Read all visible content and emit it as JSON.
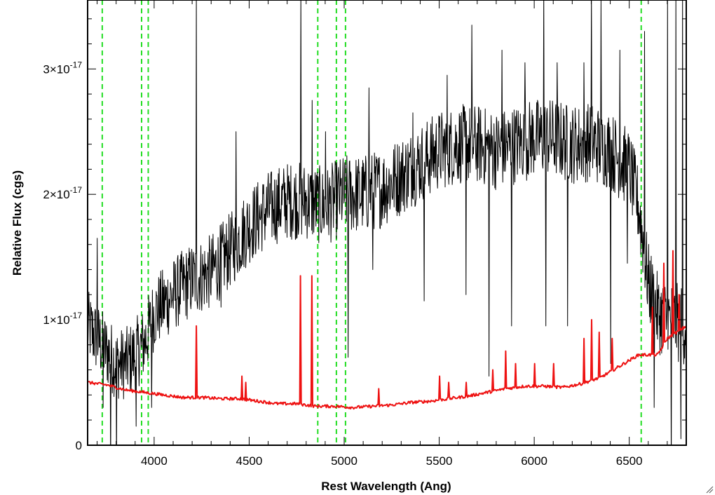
{
  "chart_data": {
    "type": "line",
    "title": "",
    "xlabel": "Rest Wavelength (Ang)",
    "ylabel": "Relative Flux (cgs)",
    "xlim": [
      3650,
      6800
    ],
    "ylim": [
      -1e-20,
      3.55e-17
    ],
    "grid": false,
    "xticks": [
      {
        "value": 4000,
        "label": "4000"
      },
      {
        "value": 4500,
        "label": "4500"
      },
      {
        "value": 5000,
        "label": "5000"
      },
      {
        "value": 5500,
        "label": "5500"
      },
      {
        "value": 6000,
        "label": "6000"
      },
      {
        "value": 6500,
        "label": "6500"
      }
    ],
    "yticks": [
      {
        "value": 0,
        "base": "0",
        "exp": ""
      },
      {
        "value": 1e-17,
        "base": "1×10",
        "exp": "-17"
      },
      {
        "value": 2e-17,
        "base": "2×10",
        "exp": "-17"
      },
      {
        "value": 3e-17,
        "base": "3×10",
        "exp": "-17"
      }
    ],
    "vlines": {
      "color": "#22dd22",
      "style": "dashed",
      "x": [
        3727,
        3934,
        3969,
        4861,
        4959,
        5007,
        6563
      ]
    },
    "series": [
      {
        "color": "#000000",
        "width": 1,
        "smooth_points": [
          [
            3650,
            9.5e-18
          ],
          [
            3700,
            8.5e-18
          ],
          [
            3750,
            7.5e-18
          ],
          [
            3800,
            6.5e-18
          ],
          [
            3850,
            6.5e-18
          ],
          [
            3900,
            7.2e-18
          ],
          [
            3950,
            8.2e-18
          ],
          [
            4000,
            1.05e-17
          ],
          [
            4100,
            1.2e-17
          ],
          [
            4200,
            1.32e-17
          ],
          [
            4300,
            1.38e-17
          ],
          [
            4400,
            1.55e-17
          ],
          [
            4500,
            1.75e-17
          ],
          [
            4600,
            1.88e-17
          ],
          [
            4700,
            1.95e-17
          ],
          [
            4800,
            1.95e-17
          ],
          [
            4900,
            1.9e-17
          ],
          [
            5000,
            2e-17
          ],
          [
            5100,
            2e-17
          ],
          [
            5200,
            2.05e-17
          ],
          [
            5300,
            2.15e-17
          ],
          [
            5400,
            2.25e-17
          ],
          [
            5500,
            2.35e-17
          ],
          [
            5600,
            2.4e-17
          ],
          [
            5700,
            2.4e-17
          ],
          [
            5800,
            2.35e-17
          ],
          [
            5900,
            2.4e-17
          ],
          [
            6000,
            2.45e-17
          ],
          [
            6100,
            2.45e-17
          ],
          [
            6200,
            2.4e-17
          ],
          [
            6300,
            2.42e-17
          ],
          [
            6400,
            2.35e-17
          ],
          [
            6500,
            2.2e-17
          ],
          [
            6550,
            1.9e-17
          ],
          [
            6600,
            1.3e-17
          ],
          [
            6650,
            1.05e-17
          ],
          [
            6700,
            1e-17
          ],
          [
            6800,
            9.5e-18
          ]
        ],
        "spikes": [
          [
            3700,
            1.65e-17
          ],
          [
            3730,
            3e-18
          ],
          [
            3770,
            -2e-18
          ],
          [
            3800,
            -2e-18
          ],
          [
            3905,
            1.5e-18
          ],
          [
            3985,
            3e-18
          ],
          [
            4220,
            2.5e-18
          ],
          [
            4220,
            3.65e-17
          ],
          [
            4350,
            1.1e-17
          ],
          [
            4430,
            2.5e-17
          ],
          [
            4770,
            -2e-18
          ],
          [
            4770,
            3.65e-17
          ],
          [
            4830,
            2.75e-17
          ],
          [
            4900,
            2.5e-17
          ],
          [
            5020,
            7e-18
          ],
          [
            5130,
            2.85e-17
          ],
          [
            5150,
            1.4e-17
          ],
          [
            5360,
            2.65e-17
          ],
          [
            5420,
            1.15e-17
          ],
          [
            5540,
            2.95e-17
          ],
          [
            5640,
            1.2e-17
          ],
          [
            5670,
            3.35e-17
          ],
          [
            5760,
            5.5e-18
          ],
          [
            5830,
            3.15e-17
          ],
          [
            5880,
            9.5e-18
          ],
          [
            5950,
            3.05e-17
          ],
          [
            6050,
            3.65e-17
          ],
          [
            6060,
            9.5e-18
          ],
          [
            6120,
            3.05e-17
          ],
          [
            6175,
            9.5e-18
          ],
          [
            6260,
            3.05e-17
          ],
          [
            6300,
            3.65e-17
          ],
          [
            6350,
            3.55e-17
          ],
          [
            6400,
            6.5e-18
          ],
          [
            6450,
            3.15e-17
          ],
          [
            6490,
            1.45e-17
          ],
          [
            6580,
            3.3e-17
          ],
          [
            6630,
            3e-18
          ],
          [
            6700,
            3.65e-17
          ],
          [
            6720,
            -2e-18
          ],
          [
            6745,
            3.65e-17
          ],
          [
            6770,
            5e-19
          ],
          [
            6780,
            3.65e-17
          ]
        ]
      },
      {
        "color": "#ee1111",
        "width": 2,
        "smooth_points": [
          [
            3650,
            5e-18
          ],
          [
            3750,
            4.8e-18
          ],
          [
            3850,
            4.4e-18
          ],
          [
            3950,
            4.2e-18
          ],
          [
            4050,
            4e-18
          ],
          [
            4150,
            3.8e-18
          ],
          [
            4250,
            3.8e-18
          ],
          [
            4350,
            3.7e-18
          ],
          [
            4450,
            3.7e-18
          ],
          [
            4550,
            3.5e-18
          ],
          [
            4650,
            3.3e-18
          ],
          [
            4750,
            3.3e-18
          ],
          [
            4850,
            3.1e-18
          ],
          [
            4950,
            3.1e-18
          ],
          [
            5050,
            3e-18
          ],
          [
            5150,
            3.1e-18
          ],
          [
            5250,
            3.2e-18
          ],
          [
            5350,
            3.4e-18
          ],
          [
            5450,
            3.5e-18
          ],
          [
            5550,
            3.7e-18
          ],
          [
            5650,
            3.9e-18
          ],
          [
            5750,
            4.2e-18
          ],
          [
            5850,
            4.5e-18
          ],
          [
            5950,
            4.7e-18
          ],
          [
            6050,
            4.7e-18
          ],
          [
            6150,
            4.6e-18
          ],
          [
            6250,
            4.9e-18
          ],
          [
            6350,
            5.4e-18
          ],
          [
            6450,
            6.3e-18
          ],
          [
            6550,
            7.2e-18
          ],
          [
            6650,
            7.2e-18
          ],
          [
            6700,
            8.5e-18
          ],
          [
            6800,
            9.5e-18
          ]
        ],
        "spikes": [
          [
            4220,
            9.5e-18
          ],
          [
            4770,
            1.35e-17
          ],
          [
            4830,
            1.35e-17
          ],
          [
            4460,
            5.5e-18
          ],
          [
            4480,
            5e-18
          ],
          [
            5180,
            4.5e-18
          ],
          [
            5500,
            5.5e-18
          ],
          [
            5550,
            5e-18
          ],
          [
            5640,
            5e-18
          ],
          [
            5780,
            6e-18
          ],
          [
            5850,
            7.5e-18
          ],
          [
            5900,
            6.5e-18
          ],
          [
            6000,
            6.5e-18
          ],
          [
            6100,
            6.5e-18
          ],
          [
            6260,
            8.5e-18
          ],
          [
            6300,
            1e-17
          ],
          [
            6340,
            9e-18
          ],
          [
            6410,
            8.5e-18
          ],
          [
            6620,
            1.1e-17
          ],
          [
            6680,
            1.45e-17
          ],
          [
            6730,
            1.55e-17
          ],
          [
            6760,
            1.2e-17
          ]
        ]
      }
    ]
  }
}
